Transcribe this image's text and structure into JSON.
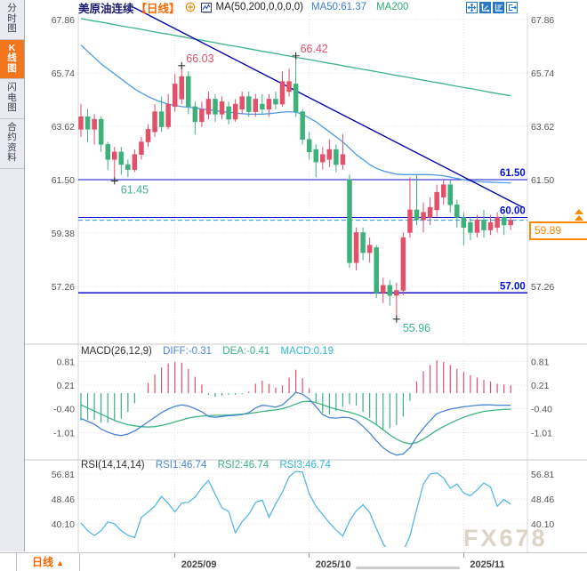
{
  "sidebar": {
    "tabs": [
      {
        "label": "分时图",
        "active": false
      },
      {
        "label": "K线图",
        "active": true
      },
      {
        "label": "闪电图",
        "active": false
      },
      {
        "label": "合约资料",
        "active": false
      }
    ]
  },
  "header": {
    "symbol": "美原油连续",
    "period": "【日线】",
    "ma_settings": "MA(50,200,0,0,0,0)",
    "ma50_label": "MA50:61.37",
    "ma200_label": "MA200",
    "icons": [
      "add-indicator-icon",
      "kline-window-icon"
    ]
  },
  "toolbar": {
    "icons": [
      "pan-icon",
      "axis-zoom-icon",
      "axis-zoom-alt-icon",
      "exit-chart-icon"
    ]
  },
  "panels": {
    "macd_title": "MACD(26,12,9)",
    "macd_diff": "DIFF:-0.31",
    "macd_dea": "DEA:-0.41",
    "macd_macd": "MACD:0.19",
    "rsi_title": "RSI(14,14,14)",
    "rsi1": "RSI1:46.74",
    "rsi2": "RSI2:46.74",
    "rsi3": "RSI3:46.74"
  },
  "bottom": {
    "period_tab": "日线",
    "arrow": "▲"
  },
  "watermark": "FX678",
  "price_box": {
    "label": "59.89"
  },
  "colors": {
    "up": "#e2506a",
    "down": "#3cb179",
    "ma50": "#4d9be5",
    "ma200": "#3db489",
    "trend": "#0000a8",
    "srline": "#1010cc",
    "srlabel": "#0010dd",
    "dashed": "#3da5e8",
    "diff": "#4a86d8",
    "dea": "#3cb57f",
    "rsi": "#56b8e8",
    "accent": "#ff8800",
    "grid": "#e0e0e5",
    "axis_text": "#555"
  },
  "chart_data": {
    "type": "candlestick",
    "title": "美原油连续 日线",
    "main": {
      "y_ticks": [
        {
          "v": 67.86,
          "label": "67.86"
        },
        {
          "v": 65.74,
          "label": "65.74"
        },
        {
          "v": 63.62,
          "label": "63.62"
        },
        {
          "v": 61.5,
          "label": "61.50"
        },
        {
          "v": 59.38,
          "label": "59.38"
        },
        {
          "v": 57.26,
          "label": "57.26"
        }
      ],
      "hlines": [
        {
          "v": 61.5,
          "label": "61.50"
        },
        {
          "v": 60.0,
          "label": "60.00"
        },
        {
          "v": 57.0,
          "label": "57.00"
        }
      ],
      "current_price": 59.89,
      "annotations": [
        {
          "i": 15,
          "p": 66.03,
          "label": "66.03",
          "kind": "high",
          "side": "above"
        },
        {
          "i": 32,
          "p": 66.42,
          "label": "66.42",
          "kind": "high",
          "side": "above"
        },
        {
          "i": 5,
          "p": 61.45,
          "label": "61.45",
          "kind": "low",
          "side": "below"
        },
        {
          "i": 47,
          "p": 55.96,
          "label": "55.96",
          "kind": "low",
          "side": "below"
        }
      ],
      "trendline": {
        "i1": 7.8,
        "p1": 68.35,
        "i2": 65.8,
        "p2": 60.4
      },
      "candles": [
        [
          63.5,
          64.5,
          63.2,
          64.0
        ],
        [
          64.0,
          64.3,
          63.0,
          63.5
        ],
        [
          63.5,
          64.1,
          62.9,
          63.9
        ],
        [
          63.9,
          64.0,
          62.6,
          62.9
        ],
        [
          62.9,
          63.0,
          61.9,
          62.3
        ],
        [
          62.3,
          62.8,
          61.45,
          62.6
        ],
        [
          62.6,
          62.8,
          61.7,
          62.1
        ],
        [
          62.1,
          62.3,
          61.6,
          61.9
        ],
        [
          61.9,
          62.7,
          61.8,
          62.5
        ],
        [
          62.5,
          63.2,
          62.3,
          63.0
        ],
        [
          63.0,
          63.7,
          62.8,
          63.5
        ],
        [
          63.4,
          64.5,
          63.2,
          64.2
        ],
        [
          64.2,
          64.8,
          63.4,
          63.6
        ],
        [
          63.6,
          64.9,
          63.5,
          64.5
        ],
        [
          64.4,
          65.7,
          64.2,
          65.3
        ],
        [
          64.7,
          66.03,
          64.5,
          65.6
        ],
        [
          65.6,
          65.8,
          64.1,
          64.4
        ],
        [
          64.4,
          64.6,
          63.3,
          63.8
        ],
        [
          63.8,
          64.6,
          63.6,
          64.3
        ],
        [
          64.1,
          65.0,
          63.9,
          64.7
        ],
        [
          64.7,
          64.9,
          63.8,
          64.1
        ],
        [
          64.1,
          64.8,
          63.9,
          64.6
        ],
        [
          64.4,
          64.6,
          63.7,
          63.9
        ],
        [
          63.9,
          64.7,
          63.8,
          64.5
        ],
        [
          64.3,
          65.0,
          64.1,
          64.8
        ],
        [
          64.8,
          65.0,
          64.0,
          64.2
        ],
        [
          64.2,
          64.9,
          64.0,
          64.7
        ],
        [
          64.5,
          64.9,
          64.1,
          64.3
        ],
        [
          64.3,
          64.9,
          64.0,
          64.7
        ],
        [
          64.7,
          65.0,
          64.3,
          64.5
        ],
        [
          64.5,
          65.8,
          64.4,
          65.4
        ],
        [
          65.0,
          65.9,
          64.8,
          65.4
        ],
        [
          65.3,
          66.42,
          64.0,
          64.2
        ],
        [
          64.2,
          64.3,
          62.9,
          63.1
        ],
        [
          63.1,
          63.4,
          62.3,
          62.6
        ],
        [
          62.7,
          62.9,
          61.6,
          62.2
        ],
        [
          62.2,
          62.8,
          61.9,
          62.5
        ],
        [
          62.3,
          63.1,
          62.0,
          62.7
        ],
        [
          62.7,
          62.9,
          61.8,
          62.1
        ],
        [
          62.1,
          63.3,
          61.9,
          62.5
        ],
        [
          61.5,
          61.7,
          58.0,
          58.2
        ],
        [
          58.2,
          59.6,
          57.9,
          59.4
        ],
        [
          59.4,
          59.6,
          58.3,
          58.6
        ],
        [
          58.6,
          59.2,
          58.2,
          58.9
        ],
        [
          58.8,
          58.9,
          56.8,
          57.0
        ],
        [
          57.0,
          57.6,
          56.6,
          57.3
        ],
        [
          57.3,
          57.5,
          56.5,
          56.9
        ],
        [
          56.9,
          57.4,
          55.96,
          57.1
        ],
        [
          57.1,
          59.4,
          56.9,
          59.2
        ],
        [
          59.4,
          61.6,
          59.2,
          60.3
        ],
        [
          60.3,
          61.7,
          59.7,
          59.9
        ],
        [
          59.9,
          60.6,
          59.4,
          60.2
        ],
        [
          60.0,
          60.8,
          59.7,
          60.4
        ],
        [
          60.3,
          61.3,
          60.0,
          61.0
        ],
        [
          60.8,
          61.5,
          60.5,
          61.3
        ],
        [
          61.3,
          61.5,
          60.2,
          60.5
        ],
        [
          60.5,
          60.7,
          59.6,
          60.0
        ],
        [
          60.0,
          60.2,
          58.9,
          59.6
        ],
        [
          59.8,
          60.0,
          59.1,
          59.4
        ],
        [
          59.4,
          60.1,
          59.2,
          59.9
        ],
        [
          59.9,
          60.3,
          59.2,
          59.5
        ],
        [
          59.5,
          60.1,
          59.3,
          59.8
        ],
        [
          59.6,
          60.2,
          59.4,
          60.0
        ],
        [
          60.0,
          60.1,
          59.3,
          59.7
        ],
        [
          59.7,
          60.0,
          59.5,
          59.89
        ]
      ],
      "ma50": [
        66.85,
        66.6,
        66.35,
        66.1,
        65.9,
        65.7,
        65.5,
        65.3,
        65.1,
        64.95,
        64.8,
        64.68,
        64.58,
        64.5,
        64.45,
        64.4,
        64.38,
        64.35,
        64.3,
        64.28,
        64.25,
        64.2,
        64.18,
        64.15,
        64.12,
        64.1,
        64.1,
        64.1,
        64.12,
        64.15,
        64.18,
        64.2,
        64.18,
        64.1,
        63.95,
        63.8,
        63.6,
        63.4,
        63.2,
        63.0,
        62.75,
        62.5,
        62.3,
        62.1,
        61.95,
        61.85,
        61.78,
        61.72,
        61.7,
        61.7,
        61.7,
        61.7,
        61.7,
        61.68,
        61.65,
        61.6,
        61.55,
        61.5,
        61.45,
        61.43,
        61.41,
        61.4,
        61.39,
        61.38,
        61.37
      ],
      "ma200": [
        67.9,
        67.85,
        67.8,
        67.76,
        67.71,
        67.66,
        67.61,
        67.56,
        67.52,
        67.47,
        67.42,
        67.37,
        67.32,
        67.28,
        67.23,
        67.18,
        67.13,
        67.08,
        67.04,
        66.99,
        66.94,
        66.89,
        66.84,
        66.8,
        66.75,
        66.7,
        66.65,
        66.6,
        66.56,
        66.51,
        66.46,
        66.41,
        66.36,
        66.32,
        66.27,
        66.22,
        66.17,
        66.12,
        66.08,
        66.03,
        65.98,
        65.93,
        65.88,
        65.84,
        65.79,
        65.74,
        65.69,
        65.64,
        65.6,
        65.55,
        65.5,
        65.45,
        65.4,
        65.36,
        65.31,
        65.26,
        65.21,
        65.16,
        65.12,
        65.07,
        65.02,
        64.97,
        64.92,
        64.88,
        64.83
      ]
    },
    "macd": {
      "y_ticks": [
        {
          "v": 0.81,
          "label": "0.81"
        },
        {
          "v": 0.21,
          "label": "0.21"
        },
        {
          "v": -0.4,
          "label": "-0.40"
        },
        {
          "v": -1.01,
          "label": "-1.01"
        }
      ],
      "diff": [
        -0.65,
        -0.72,
        -0.8,
        -0.92,
        -1.0,
        -1.06,
        -1.09,
        -1.05,
        -0.97,
        -0.86,
        -0.74,
        -0.62,
        -0.5,
        -0.41,
        -0.34,
        -0.3,
        -0.33,
        -0.4,
        -0.48,
        -0.6,
        -0.62,
        -0.6,
        -0.58,
        -0.57,
        -0.55,
        -0.5,
        -0.38,
        -0.31,
        -0.33,
        -0.36,
        -0.3,
        -0.15,
        0.02,
        -0.03,
        -0.15,
        -0.35,
        -0.55,
        -0.63,
        -0.64,
        -0.62,
        -0.63,
        -0.7,
        -0.85,
        -1.02,
        -1.22,
        -1.4,
        -1.52,
        -1.59,
        -1.56,
        -1.4,
        -1.12,
        -0.9,
        -0.71,
        -0.53,
        -0.46,
        -0.41,
        -0.38,
        -0.35,
        -0.33,
        -0.31,
        -0.3,
        -0.3,
        -0.31,
        -0.31,
        -0.31
      ],
      "dea": [
        -0.3,
        -0.38,
        -0.46,
        -0.54,
        -0.62,
        -0.7,
        -0.76,
        -0.81,
        -0.84,
        -0.86,
        -0.87,
        -0.86,
        -0.83,
        -0.79,
        -0.74,
        -0.69,
        -0.64,
        -0.61,
        -0.59,
        -0.58,
        -0.57,
        -0.57,
        -0.56,
        -0.55,
        -0.54,
        -0.52,
        -0.5,
        -0.47,
        -0.45,
        -0.43,
        -0.4,
        -0.35,
        -0.28,
        -0.22,
        -0.21,
        -0.24,
        -0.3,
        -0.36,
        -0.41,
        -0.45,
        -0.49,
        -0.54,
        -0.61,
        -0.7,
        -0.81,
        -0.94,
        -1.07,
        -1.18,
        -1.26,
        -1.3,
        -1.27,
        -1.18,
        -1.07,
        -0.95,
        -0.86,
        -0.77,
        -0.69,
        -0.62,
        -0.56,
        -0.51,
        -0.47,
        -0.45,
        -0.43,
        -0.42,
        -0.41
      ]
    },
    "rsi": {
      "y_ticks": [
        {
          "v": 56.81,
          "label": "56.81"
        },
        {
          "v": 48.46,
          "label": "48.46"
        },
        {
          "v": 40.1,
          "label": "40.10"
        }
      ],
      "values": [
        40.4,
        37.8,
        36.2,
        37.8,
        40.8,
        40.1,
        37.8,
        36.3,
        35.5,
        42.3,
        44.1,
        46.1,
        49.3,
        47.0,
        44.1,
        47.1,
        47.4,
        49.1,
        52.2,
        54.7,
        50.0,
        45.5,
        44.3,
        37.1,
        40.8,
        43.3,
        47.3,
        48.1,
        42.3,
        46.8,
        50.7,
        55.9,
        57.7,
        57.5,
        50.2,
        46.0,
        43.2,
        40.5,
        38.0,
        36.0,
        41.0,
        44.5,
        46.5,
        44.0,
        38.5,
        33.5,
        30.0,
        28.5,
        31.0,
        36.0,
        45.0,
        53.5,
        56.8,
        57.2,
        55.5,
        52.0,
        53.5,
        50.5,
        49.5,
        51.5,
        53.8,
        52.5,
        46.0,
        48.3,
        46.74
      ]
    },
    "x_gridlines": [
      {
        "i": 14,
        "label": "2025/09"
      },
      {
        "i": 34,
        "label": "2025/10"
      },
      {
        "i": 57,
        "label": "2025/11"
      }
    ]
  }
}
